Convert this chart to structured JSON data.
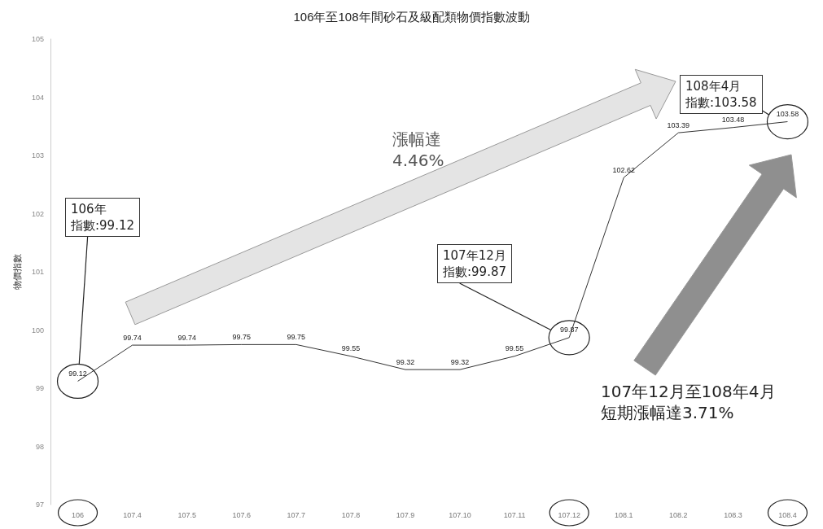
{
  "chart_data": {
    "type": "line",
    "title": "106年至108年間砂石及級配類物價指數波動",
    "ylabel": "物價指數",
    "categories": [
      "106",
      "107.4",
      "107.5",
      "107.6",
      "107.7",
      "107.8",
      "107.9",
      "107.10",
      "107.11",
      "107.12",
      "108.1",
      "108.2",
      "108.3",
      "108.4"
    ],
    "series": [
      {
        "color": "#333333",
        "values": [
          99.12,
          99.74,
          99.74,
          99.75,
          99.75,
          99.55,
          99.32,
          99.32,
          99.55,
          99.87,
          102.62,
          103.39,
          103.48,
          103.58
        ]
      }
    ],
    "ylim": [
      97,
      105
    ],
    "yticks": [
      97,
      98,
      99,
      100,
      101,
      102,
      103,
      104,
      105
    ],
    "data_labels": true,
    "grid": false,
    "marker": "none",
    "line_style": "solid",
    "annotations": [
      "106年",
      "指數:99.12",
      "107年12月",
      "指數:99.87",
      "108年4月",
      "指數:103.58",
      "漲幅達",
      "4.46%",
      "107年12月至108年4月",
      "短期漲幅達3.71%"
    ]
  }
}
